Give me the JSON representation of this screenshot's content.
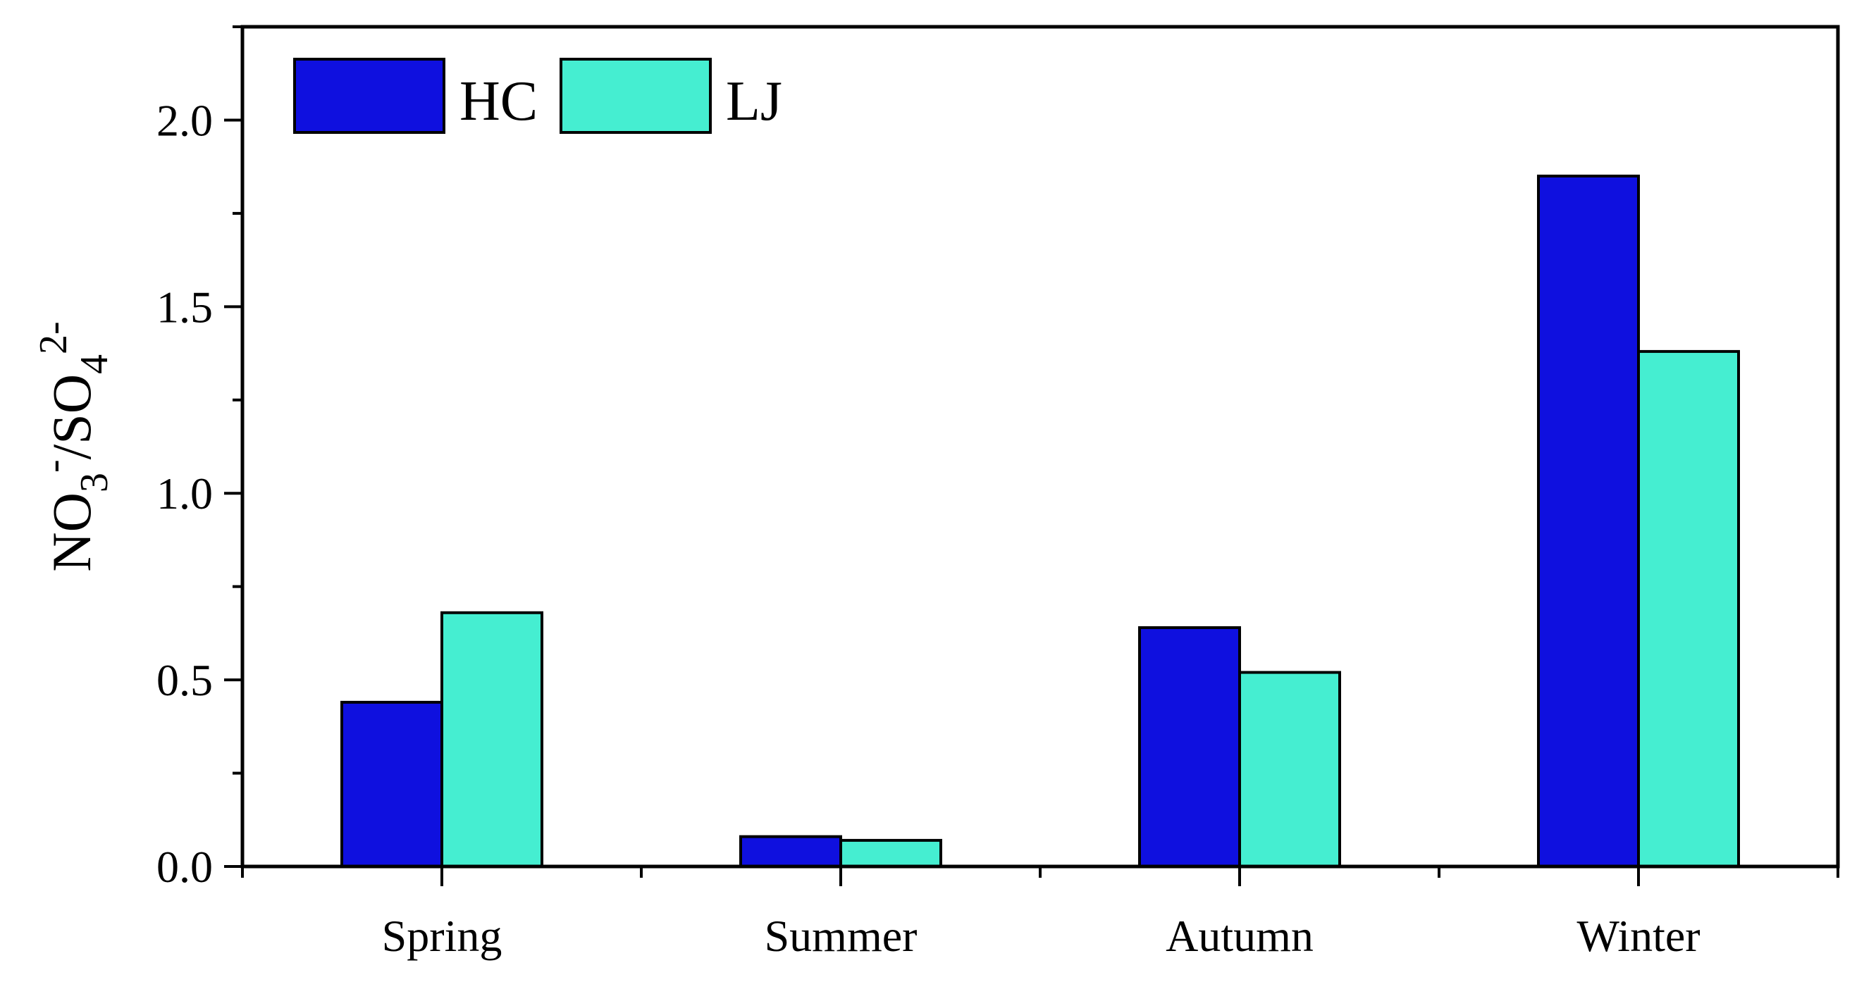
{
  "chart_data": {
    "type": "bar",
    "title": "",
    "xlabel": "",
    "ylabel": {
      "main": "NO",
      "sub1": "3",
      "sup1": "-",
      "middle": "/SO",
      "sub2": "4",
      "sup2": "2-"
    },
    "categories": [
      "Spring",
      "Summer",
      "Autumn",
      "Winter"
    ],
    "series": [
      {
        "name": "HC",
        "color": "#0f10df",
        "values": [
          0.44,
          0.08,
          0.64,
          1.85
        ]
      },
      {
        "name": "LJ",
        "color": "#45eed1",
        "values": [
          0.68,
          0.07,
          0.52,
          1.38
        ]
      }
    ],
    "ylim": [
      0,
      2.25
    ],
    "yticks": [
      "0.0",
      "0.5",
      "1.0",
      "1.5",
      "2.0"
    ],
    "ytick_values": [
      0,
      0.5,
      1.0,
      1.5,
      2.0
    ],
    "y_minor_step": 0.25,
    "grid": false,
    "legend_position": "top-left"
  }
}
